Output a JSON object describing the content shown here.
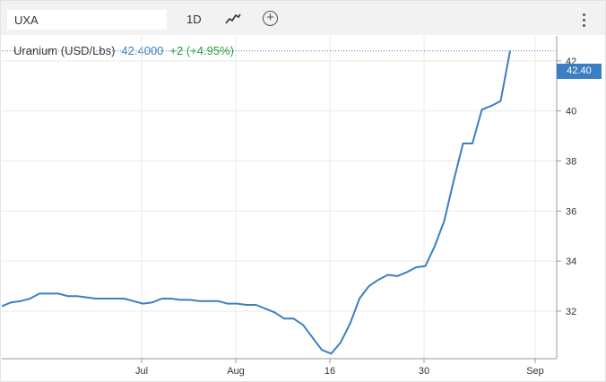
{
  "toolbar": {
    "symbol": "UXA",
    "interval": "1D",
    "chart_type_icon": "line-chart-icon",
    "add_icon": "plus-circle-icon",
    "add_symbol": "+",
    "more_icon": "vertical-dots-icon"
  },
  "legend": {
    "name": "Uranium (USD/Lbs)",
    "price": "42.4000",
    "change": "+2 (+4.95%)"
  },
  "last_price_label": "42.40",
  "colors": {
    "line": "#3a7fc4",
    "price_tag": "#3a7fc4",
    "change_positive": "#2ca02c",
    "grid": "#e9e9e9"
  },
  "chart_data": {
    "type": "line",
    "title": "",
    "xlabel": "",
    "ylabel": "",
    "x_ticks": [
      "Jul",
      "Aug",
      "16",
      "30",
      "Sep"
    ],
    "y_ticks": [
      32,
      34,
      36,
      38,
      40,
      42
    ],
    "ylim": [
      30.1,
      43.0
    ],
    "y_axis_side": "right",
    "grid": true,
    "series": [
      {
        "name": "",
        "values": [
          32.2,
          32.35,
          32.4,
          32.5,
          32.7,
          32.7,
          32.7,
          32.6,
          32.6,
          32.55,
          32.5,
          32.5,
          32.5,
          32.5,
          32.4,
          32.3,
          32.35,
          32.5,
          32.5,
          32.45,
          32.45,
          32.4,
          32.4,
          32.4,
          32.3,
          32.3,
          32.25,
          32.25,
          32.1,
          31.95,
          31.7,
          31.7,
          31.45,
          30.95,
          30.45,
          30.3,
          30.75,
          31.5,
          32.5,
          33.0,
          33.25,
          33.45,
          33.4,
          33.55,
          33.75,
          33.8,
          34.6,
          35.6,
          37.2,
          38.7,
          38.7,
          40.05,
          40.2,
          40.4,
          42.4
        ]
      }
    ]
  }
}
